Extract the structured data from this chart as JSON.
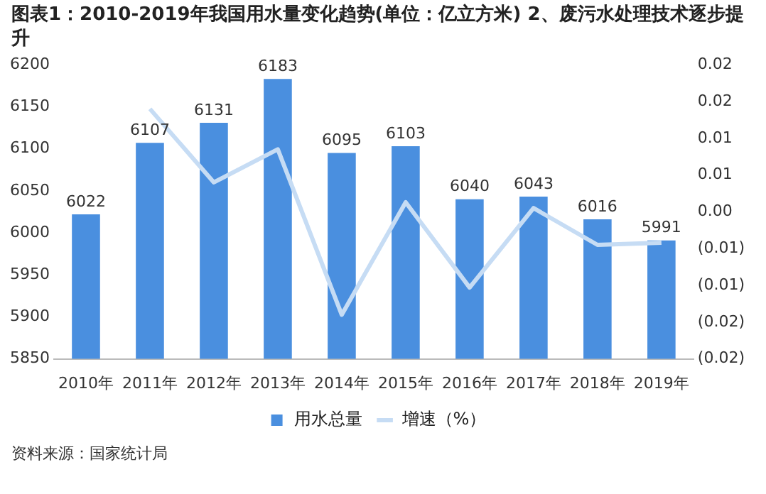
{
  "chart_data": {
    "type": "bar",
    "title": "图表1：2010-2019年我国用水量变化趋势(单位：亿立方米) 2、废污水处理技术逐步提升",
    "categories": [
      "2010年",
      "2011年",
      "2012年",
      "2013年",
      "2014年",
      "2015年",
      "2016年",
      "2017年",
      "2018年",
      "2019年"
    ],
    "series": [
      {
        "name": "用水总量",
        "color": "#4a8fdf",
        "values": [
          6022,
          6107,
          6131,
          6183,
          6095,
          6103,
          6040,
          6043,
          6016,
          5991
        ],
        "value_labels": [
          "6022",
          "6107",
          "6131",
          "6183",
          "6095",
          "6103",
          "6040",
          "6043",
          "6016",
          "5991"
        ]
      },
      {
        "name": "增速（%）",
        "type": "line",
        "axis": "y2",
        "color": "#c6dcf4",
        "values": [
          null,
          0.014,
          0.004,
          0.0085,
          -0.014,
          0.0013,
          -0.0103,
          0.0005,
          -0.0045,
          -0.0042
        ]
      }
    ],
    "ylim": [
      5850,
      6200
    ],
    "yticks": [
      5850,
      5900,
      5950,
      6000,
      6050,
      6100,
      6150,
      6200
    ],
    "y2lim": [
      -0.02,
      0.02
    ],
    "y2ticks": [
      {
        "value": -0.02,
        "label": "(0.02)"
      },
      {
        "value": -0.015,
        "label": "(0.02)"
      },
      {
        "value": -0.01,
        "label": "(0.01)"
      },
      {
        "value": -0.005,
        "label": "(0.01)"
      },
      {
        "value": 0,
        "label": "0.00"
      },
      {
        "value": 0.005,
        "label": "0.01"
      },
      {
        "value": 0.01,
        "label": "0.01"
      },
      {
        "value": 0.015,
        "label": "0.02"
      },
      {
        "value": 0.02,
        "label": "0.02"
      }
    ],
    "legend": "bottom",
    "grid": false,
    "marker": "none",
    "annotations": [
      "资料来源：国家统计局"
    ]
  }
}
